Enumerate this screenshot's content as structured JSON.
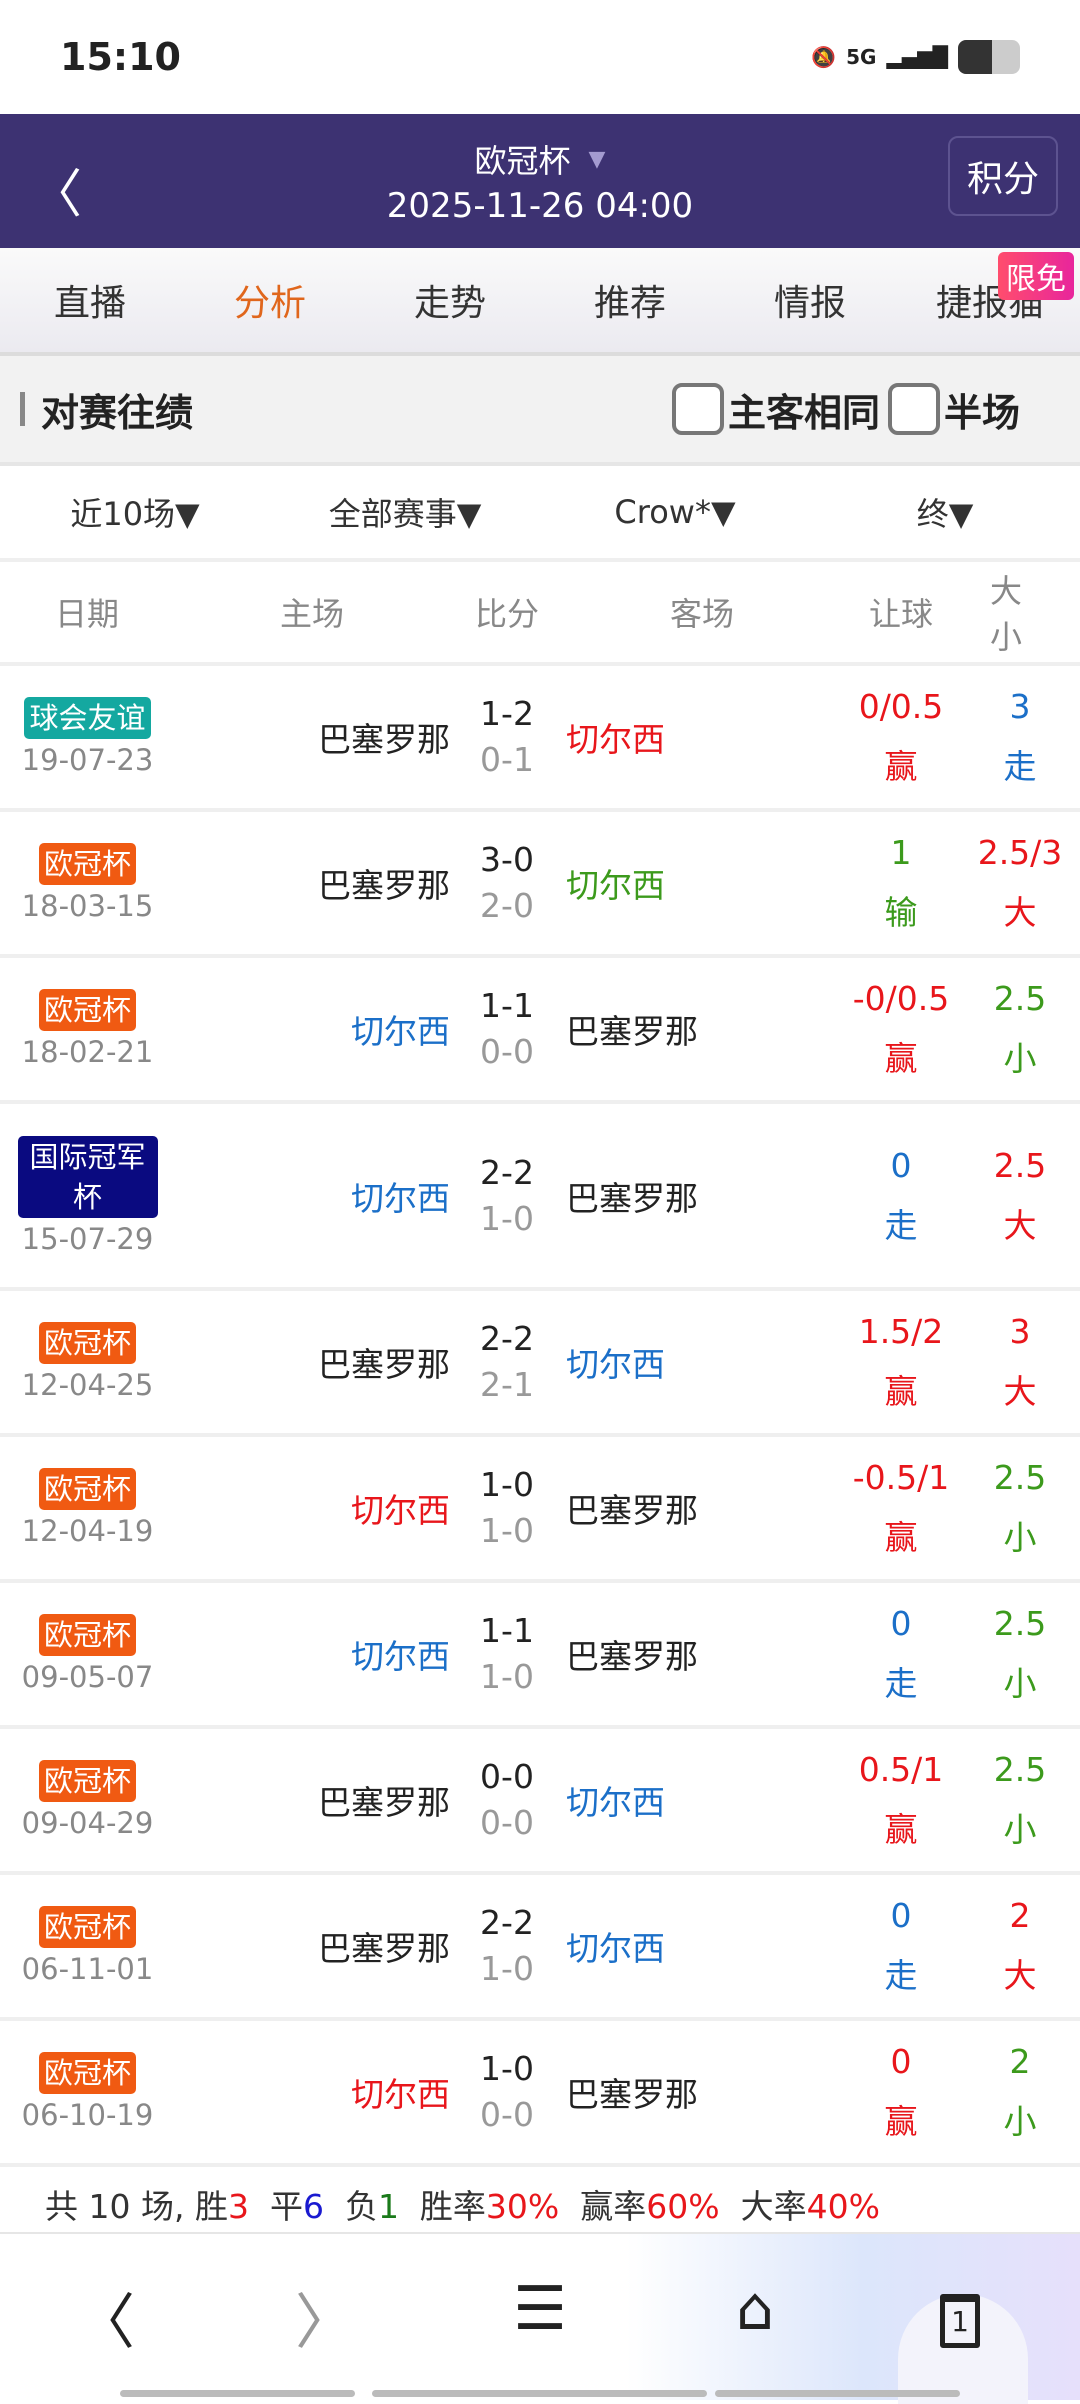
{
  "status": {
    "time": "15:10",
    "network": "5G"
  },
  "header": {
    "league": "欧冠杯",
    "datetime": "2025-11-26 04:00",
    "points_label": "积分"
  },
  "tabs": [
    {
      "label": "直播"
    },
    {
      "label": "分析",
      "active": true
    },
    {
      "label": "走势"
    },
    {
      "label": "推荐"
    },
    {
      "label": "情报"
    },
    {
      "label": "捷报猫"
    }
  ],
  "badge": "限免",
  "section": {
    "title": "对赛往绩",
    "checkbox_same": "主客相同",
    "checkbox_half": "半场"
  },
  "filters": [
    "近10场▼",
    "全部赛事▼",
    "Crow*▼",
    "终▼"
  ],
  "columns": [
    "日期",
    "主场",
    "比分",
    "客场",
    "让球",
    "大小"
  ],
  "colors": {
    "red": "#e8161b",
    "green": "#3c9a1c",
    "blue": "#1b6fc8",
    "orange_tag": "#f05a12",
    "teal_tag": "#14a8a0",
    "navy_tag": "#0a0a80",
    "accent": "#e0661c",
    "header_bg": "#3d3272"
  },
  "rows": [
    {
      "league": "球会友谊",
      "tag": "teal_tag",
      "date": "19-07-23",
      "home": "巴塞罗那",
      "home_color": "",
      "score": "1-2",
      "half": "0-1",
      "away": "切尔西",
      "away_color": "red",
      "hcp": "0/0.5",
      "hcp_res": "赢",
      "hcp_color": "red",
      "ou": "3",
      "ou_res": "走",
      "ou_color": "blue"
    },
    {
      "league": "欧冠杯",
      "tag": "orange_tag",
      "date": "18-03-15",
      "home": "巴塞罗那",
      "home_color": "",
      "score": "3-0",
      "half": "2-0",
      "away": "切尔西",
      "away_color": "green",
      "hcp": "1",
      "hcp_res": "输",
      "hcp_color": "green",
      "ou": "2.5/3",
      "ou_res": "大",
      "ou_color": "red"
    },
    {
      "league": "欧冠杯",
      "tag": "orange_tag",
      "date": "18-02-21",
      "home": "切尔西",
      "home_color": "blue",
      "score": "1-1",
      "half": "0-0",
      "away": "巴塞罗那",
      "away_color": "",
      "hcp": "-0/0.5",
      "hcp_res": "赢",
      "hcp_color": "red",
      "ou": "2.5",
      "ou_res": "小",
      "ou_color": "green"
    },
    {
      "league": "国际冠军杯",
      "tag": "navy_tag",
      "date": "15-07-29",
      "home": "切尔西",
      "home_color": "blue",
      "score": "2-2",
      "half": "1-0",
      "away": "巴塞罗那",
      "away_color": "",
      "hcp": "0",
      "hcp_res": "走",
      "hcp_color": "blue",
      "ou": "2.5",
      "ou_res": "大",
      "ou_color": "red"
    },
    {
      "league": "欧冠杯",
      "tag": "orange_tag",
      "date": "12-04-25",
      "home": "巴塞罗那",
      "home_color": "",
      "score": "2-2",
      "half": "2-1",
      "away": "切尔西",
      "away_color": "blue",
      "hcp": "1.5/2",
      "hcp_res": "赢",
      "hcp_color": "red",
      "ou": "3",
      "ou_res": "大",
      "ou_color": "red"
    },
    {
      "league": "欧冠杯",
      "tag": "orange_tag",
      "date": "12-04-19",
      "home": "切尔西",
      "home_color": "red",
      "score": "1-0",
      "half": "1-0",
      "away": "巴塞罗那",
      "away_color": "",
      "hcp": "-0.5/1",
      "hcp_res": "赢",
      "hcp_color": "red",
      "ou": "2.5",
      "ou_res": "小",
      "ou_color": "green"
    },
    {
      "league": "欧冠杯",
      "tag": "orange_tag",
      "date": "09-05-07",
      "home": "切尔西",
      "home_color": "blue",
      "score": "1-1",
      "half": "1-0",
      "away": "巴塞罗那",
      "away_color": "",
      "hcp": "0",
      "hcp_res": "走",
      "hcp_color": "blue",
      "ou": "2.5",
      "ou_res": "小",
      "ou_color": "green"
    },
    {
      "league": "欧冠杯",
      "tag": "orange_tag",
      "date": "09-04-29",
      "home": "巴塞罗那",
      "home_color": "",
      "score": "0-0",
      "half": "0-0",
      "away": "切尔西",
      "away_color": "blue",
      "hcp": "0.5/1",
      "hcp_res": "赢",
      "hcp_color": "red",
      "ou": "2.5",
      "ou_res": "小",
      "ou_color": "green"
    },
    {
      "league": "欧冠杯",
      "tag": "orange_tag",
      "date": "06-11-01",
      "home": "巴塞罗那",
      "home_color": "",
      "score": "2-2",
      "half": "1-0",
      "away": "切尔西",
      "away_color": "blue",
      "hcp": "0",
      "hcp_res": "走",
      "hcp_color": "blue",
      "ou": "2",
      "ou_res": "大",
      "ou_color": "red"
    },
    {
      "league": "欧冠杯",
      "tag": "orange_tag",
      "date": "06-10-19",
      "home": "切尔西",
      "home_color": "red",
      "score": "1-0",
      "half": "0-0",
      "away": "巴塞罗那",
      "away_color": "",
      "hcp": "0",
      "hcp_res": "赢",
      "hcp_color": "red",
      "ou": "2",
      "ou_res": "小",
      "ou_color": "green"
    }
  ],
  "summary": {
    "total": "共 10 场,",
    "win_label": "胜",
    "win": "3",
    "draw_label": "平",
    "draw": "6",
    "loss_label": "负",
    "loss": "1",
    "winrate_label": "胜率",
    "winrate": "30%",
    "hcprate_label": "赢率",
    "hcprate": "60%",
    "overrate_label": "大率",
    "overrate": "40%"
  },
  "nav": {
    "tab_count": "1"
  }
}
